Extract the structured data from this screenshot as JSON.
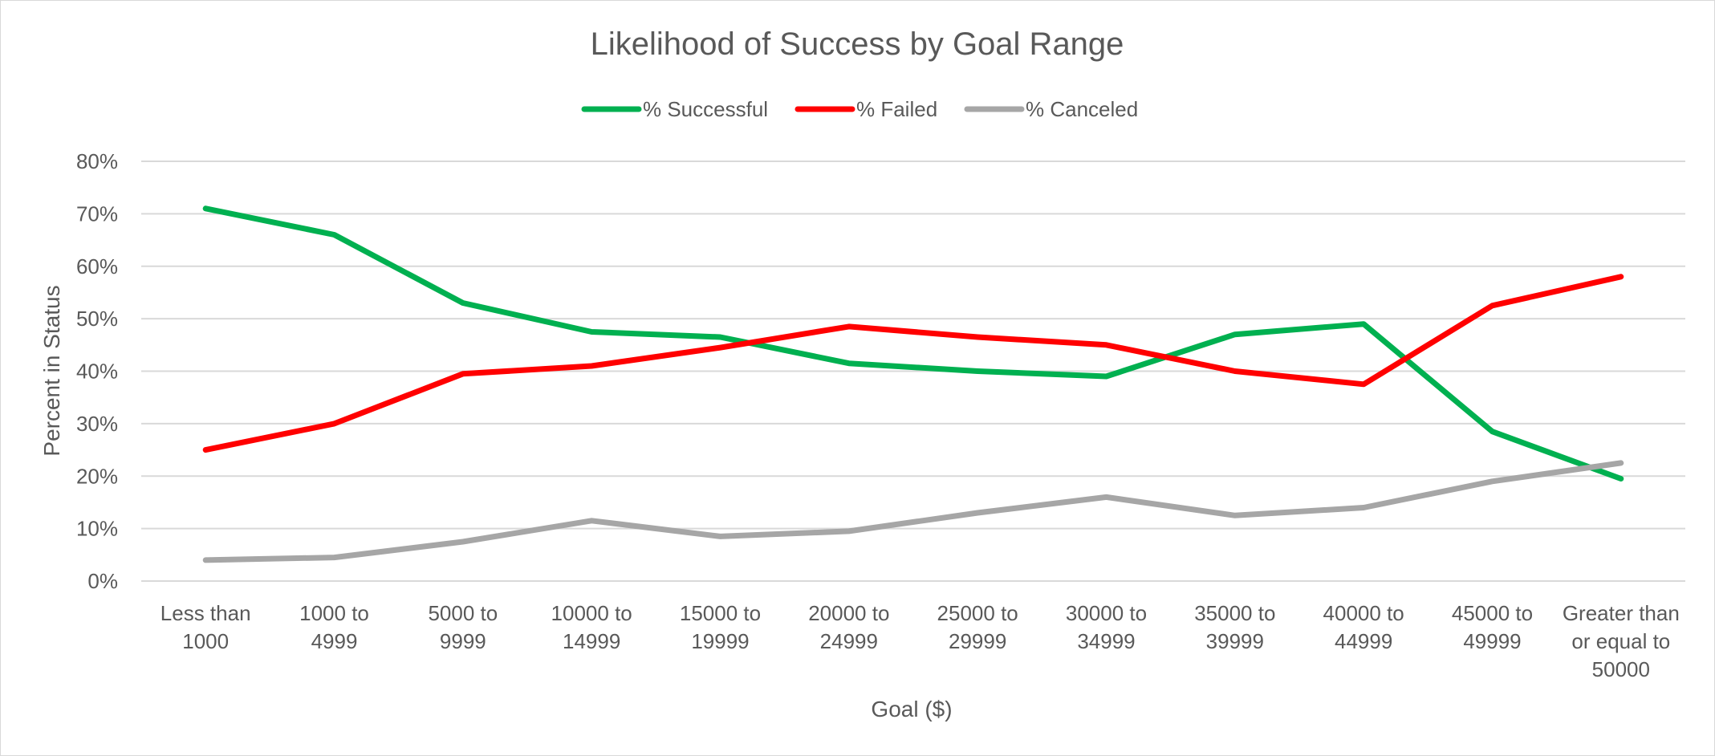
{
  "chart_data": {
    "type": "line",
    "title": "Likelihood of Success by Goal Range",
    "xlabel": "Goal ($)",
    "ylabel": "Percent in Status",
    "categories": [
      [
        "Less than",
        "1000"
      ],
      [
        "1000 to",
        "4999"
      ],
      [
        "5000 to",
        "9999"
      ],
      [
        "10000 to",
        "14999"
      ],
      [
        "15000 to",
        "19999"
      ],
      [
        "20000 to",
        "24999"
      ],
      [
        "25000 to",
        "29999"
      ],
      [
        "30000 to",
        "34999"
      ],
      [
        "35000 to",
        "39999"
      ],
      [
        "40000 to",
        "44999"
      ],
      [
        "45000 to",
        "49999"
      ],
      [
        "Greater than",
        "or equal to",
        "50000"
      ]
    ],
    "yticks": [
      "0%",
      "10%",
      "20%",
      "30%",
      "40%",
      "50%",
      "60%",
      "70%",
      "80%"
    ],
    "ylim": [
      0,
      0.8
    ],
    "grid": true,
    "legend_position": "top",
    "series": [
      {
        "name": "% Successful",
        "color": "#00b050",
        "values": [
          0.71,
          0.66,
          0.53,
          0.475,
          0.465,
          0.415,
          0.4,
          0.39,
          0.47,
          0.49,
          0.285,
          0.195
        ]
      },
      {
        "name": "% Failed",
        "color": "#ff0000",
        "values": [
          0.25,
          0.3,
          0.395,
          0.41,
          0.445,
          0.485,
          0.465,
          0.45,
          0.4,
          0.375,
          0.525,
          0.58
        ]
      },
      {
        "name": "% Canceled",
        "color": "#a6a6a6",
        "values": [
          0.04,
          0.045,
          0.075,
          0.115,
          0.085,
          0.095,
          0.13,
          0.16,
          0.125,
          0.14,
          0.19,
          0.225
        ]
      }
    ]
  }
}
